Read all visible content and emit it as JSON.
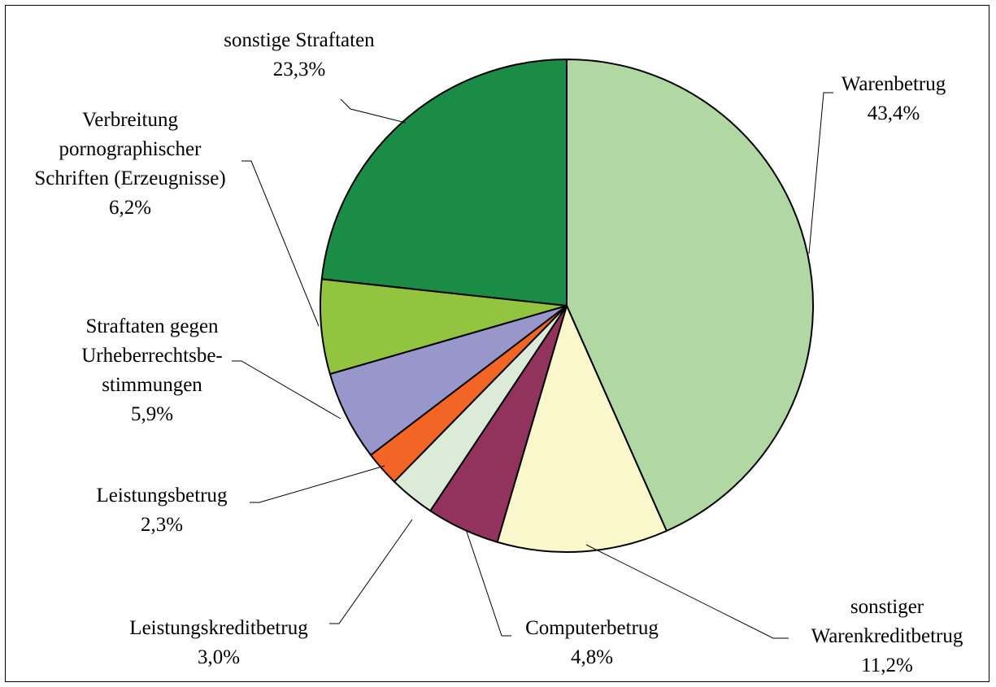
{
  "chart_data": {
    "type": "pie",
    "start_angle_deg": 0,
    "direction": "clockwise",
    "slices": [
      {
        "lines": [
          "Warenbetrug"
        ],
        "value_label": "43,4%",
        "value": 43.4,
        "color": "#b1d8a3"
      },
      {
        "lines": [
          "sonstiger",
          "Warenkreditbetrug"
        ],
        "value_label": "11,2%",
        "value": 11.2,
        "color": "#faf7cc"
      },
      {
        "lines": [
          "Computerbetrug"
        ],
        "value_label": "4,8%",
        "value": 4.8,
        "color": "#92335e"
      },
      {
        "lines": [
          "Leistungskreditbetrug"
        ],
        "value_label": "3,0%",
        "value": 3.0,
        "color": "#dcebd7"
      },
      {
        "lines": [
          "Leistungsbetrug"
        ],
        "value_label": "2,3%",
        "value": 2.3,
        "color": "#f26524"
      },
      {
        "lines": [
          "Straftaten gegen",
          "Urheberrechtsbe-",
          "stimmungen"
        ],
        "value_label": "5,9%",
        "value": 5.9,
        "color": "#9797cb"
      },
      {
        "lines": [
          "Verbreitung",
          "pornographischer",
          "Schriften (Erzeugnisse)"
        ],
        "value_label": "6,2%",
        "value": 6.2,
        "color": "#93c43f"
      },
      {
        "lines": [
          "sonstige Straftaten"
        ],
        "value_label": "23,3%",
        "value": 23.3,
        "color": "#1a8c45"
      }
    ]
  }
}
